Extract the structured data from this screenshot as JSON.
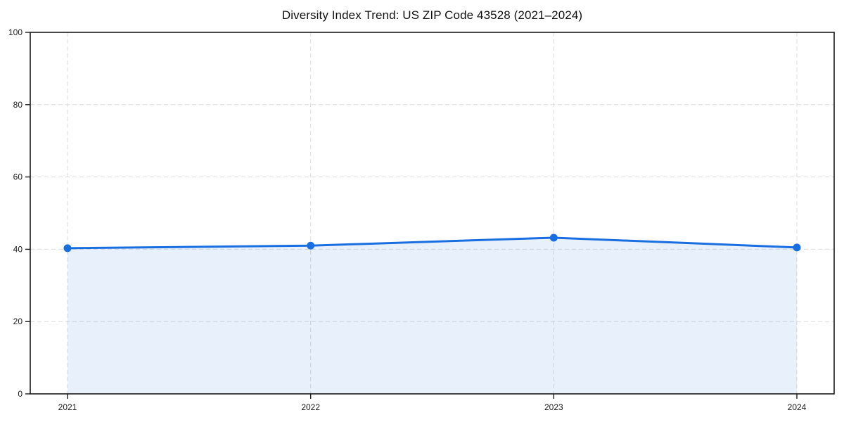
{
  "chart_data": {
    "type": "area",
    "title": "Diversity Index Trend: US ZIP Code 43528 (2021–2024)",
    "x": [
      "2021",
      "2022",
      "2023",
      "2024"
    ],
    "series": [
      {
        "name": "Diversity Index",
        "values": [
          40.3,
          41.0,
          43.2,
          40.5
        ]
      }
    ],
    "xlabel": "",
    "ylabel": "",
    "ylim": [
      0,
      100
    ],
    "yticks": [
      0,
      20,
      40,
      60,
      80,
      100
    ],
    "grid": "dashed-horizontal-and-vertical",
    "legend": "none",
    "marker": "circle",
    "line_color": "#1a6fe0",
    "fill_opacity": 0.1,
    "grid_color": "#dcdcdc",
    "axis_color": "#1a1a1a",
    "tick_label_color": "#1a1a1a",
    "background": "#ffffff"
  }
}
